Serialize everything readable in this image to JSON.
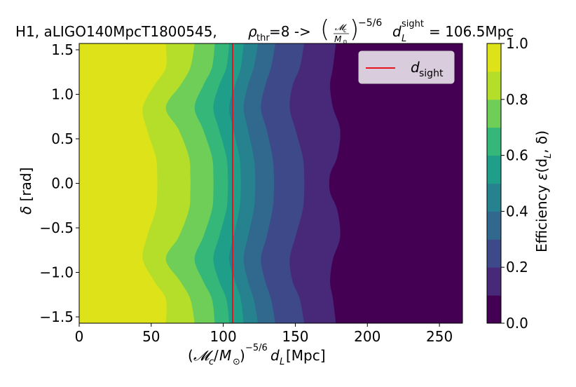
{
  "chart_data": {
    "type": "heatmap",
    "title": {
      "prefix": "H1, aLIGO140MpcT1800545, ",
      "rho": "ρ",
      "rho_sub": "thr",
      "mid": "=8 -> ",
      "frac_num": "𝓜",
      "frac_num_sub": "c",
      "frac_den": "M",
      "frac_den_sub": "⊙",
      "exponent": "−5/6",
      "d": "d",
      "d_sub": "L",
      "d_sup": "sight",
      "value_text": " = 106.5Mpc"
    },
    "xlabel": {
      "pre": "(",
      "script_m": "𝓜",
      "sub_c": "c",
      "slash": "/",
      "m": "M",
      "sub_sun": "⊙",
      "close_exp": ")",
      "exp": "−5/6",
      "d": "d",
      "d_sub": "L",
      "unit": " [Mpc]"
    },
    "ylabel": {
      "sym": "δ",
      "unit": " [rad]"
    },
    "colorbar_label": {
      "text": "Efficiency ",
      "eps": "ε",
      "args_open": "(d",
      "args_sub": "L",
      "args_close": ", δ)"
    },
    "xlim": [
      0,
      266
    ],
    "ylim": [
      -1.5708,
      1.5708
    ],
    "x_ticks": [
      0,
      50,
      100,
      150,
      200,
      250
    ],
    "x_tick_labels": [
      "0",
      "50",
      "100",
      "150",
      "200",
      "250"
    ],
    "y_ticks": [
      1.5,
      1.0,
      0.5,
      0.0,
      -0.5,
      -1.0,
      -1.5
    ],
    "y_tick_labels": [
      "1.5",
      "1.0",
      "0.5",
      "0.0",
      "−0.5",
      "−1.0",
      "−1.5"
    ],
    "colorbar_ticks": [
      1.0,
      0.8,
      0.6,
      0.4,
      0.2,
      0.0
    ],
    "colorbar_tick_labels": [
      "1.0",
      "0.8",
      "0.6",
      "0.4",
      "0.2",
      "0.0"
    ],
    "levels": [
      0.0,
      0.1,
      0.2,
      0.3,
      0.4,
      0.5,
      0.6,
      0.7,
      0.8,
      0.9,
      1.0
    ],
    "level_colors": [
      "#440154",
      "#482878",
      "#3e4989",
      "#31688e",
      "#26828e",
      "#1f9e89",
      "#35b779",
      "#6ece58",
      "#b5de2b",
      "#dde318"
    ],
    "contour_boundaries": [
      {
        "level": 0.9,
        "x_at_dec": [
          60,
          60,
          52,
          44,
          47,
          53,
          54,
          54,
          53,
          47,
          44,
          52,
          60,
          60
        ],
        "dec": [
          -1.5708,
          -1.3,
          -1.1,
          -0.85,
          -0.6,
          -0.3,
          -0.1,
          0.1,
          0.3,
          0.6,
          0.85,
          1.1,
          1.3,
          1.5708
        ]
      },
      {
        "level": 0.8,
        "x_at_dec": [
          80,
          77,
          70,
          60,
          69,
          76,
          77,
          77,
          76,
          69,
          60,
          70,
          77,
          80
        ],
        "dec": [
          -1.5708,
          -1.3,
          -1.1,
          -0.85,
          -0.6,
          -0.3,
          -0.1,
          0.1,
          0.3,
          0.6,
          0.85,
          1.1,
          1.3,
          1.5708
        ]
      },
      {
        "level": 0.7,
        "x_at_dec": [
          94,
          92,
          86,
          80,
          86,
          92,
          93,
          93,
          92,
          86,
          80,
          86,
          92,
          94
        ],
        "dec": [
          -1.5708,
          -1.3,
          -1.1,
          -0.85,
          -0.6,
          -0.3,
          -0.1,
          0.1,
          0.3,
          0.6,
          0.85,
          1.1,
          1.3,
          1.5708
        ]
      },
      {
        "level": 0.6,
        "x_at_dec": [
          104,
          102,
          97,
          93,
          97,
          102,
          103,
          103,
          102,
          97,
          93,
          97,
          102,
          104
        ],
        "dec": [
          -1.5708,
          -1.3,
          -1.1,
          -0.85,
          -0.6,
          -0.3,
          -0.1,
          0.1,
          0.3,
          0.6,
          0.85,
          1.1,
          1.3,
          1.5708
        ]
      },
      {
        "level": 0.5,
        "x_at_dec": [
          114,
          112,
          108,
          104,
          107,
          111,
          112,
          112,
          111,
          107,
          104,
          108,
          112,
          114
        ],
        "dec": [
          -1.5708,
          -1.3,
          -1.1,
          -0.85,
          -0.6,
          -0.3,
          -0.1,
          0.1,
          0.3,
          0.6,
          0.85,
          1.1,
          1.3,
          1.5708
        ]
      },
      {
        "level": 0.4,
        "x_at_dec": [
          124,
          121,
          117,
          114,
          117,
          121,
          122,
          122,
          121,
          117,
          114,
          117,
          121,
          124
        ],
        "dec": [
          -1.5708,
          -1.3,
          -1.1,
          -0.85,
          -0.6,
          -0.3,
          -0.1,
          0.1,
          0.3,
          0.6,
          0.85,
          1.1,
          1.3,
          1.5708
        ]
      },
      {
        "level": 0.3,
        "x_at_dec": [
          136,
          133,
          129,
          126,
          130,
          134,
          135,
          135,
          134,
          130,
          126,
          129,
          133,
          136
        ],
        "dec": [
          -1.5708,
          -1.3,
          -1.1,
          -0.85,
          -0.6,
          -0.3,
          -0.1,
          0.1,
          0.3,
          0.6,
          0.85,
          1.1,
          1.3,
          1.5708
        ]
      },
      {
        "level": 0.2,
        "x_at_dec": [
          156,
          153,
          148,
          146,
          150,
          155,
          156,
          156,
          155,
          150,
          146,
          148,
          153,
          156
        ],
        "dec": [
          -1.5708,
          -1.3,
          -1.1,
          -0.85,
          -0.6,
          -0.3,
          -0.1,
          0.1,
          0.3,
          0.6,
          0.85,
          1.1,
          1.3,
          1.5708
        ]
      },
      {
        "level": 0.1,
        "x_at_dec": [
          178,
          176,
          174,
          176,
          181,
          179,
          174,
          174,
          179,
          181,
          176,
          174,
          176,
          178
        ],
        "dec": [
          -1.5708,
          -1.3,
          -1.1,
          -0.85,
          -0.6,
          -0.3,
          -0.1,
          0.1,
          0.3,
          0.6,
          0.85,
          1.1,
          1.3,
          1.5708
        ]
      }
    ],
    "vertical_line": {
      "x": 106.5,
      "color": "#e8141c"
    },
    "legend": {
      "position": "top-right",
      "entries": [
        {
          "sym": "d",
          "sub": "sight",
          "color": "#e8141c"
        }
      ]
    }
  }
}
